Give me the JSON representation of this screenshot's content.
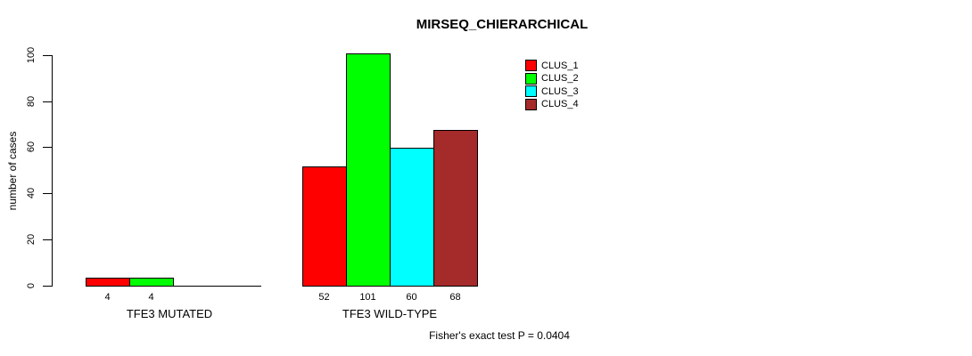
{
  "chart_data": {
    "type": "bar",
    "title": "MIRSEQ_CHIERARCHICAL",
    "ylabel": "number of cases",
    "xlabel": "",
    "ylim": [
      0,
      100
    ],
    "yticks": [
      0,
      20,
      40,
      60,
      80,
      100
    ],
    "grid": false,
    "legend_position": "top-right",
    "categories": [
      "TFE3 MUTATED",
      "TFE3 WILD-TYPE"
    ],
    "series": [
      {
        "name": "CLUS_1",
        "color": "#ff0000",
        "values": [
          4,
          52
        ]
      },
      {
        "name": "CLUS_2",
        "color": "#00ff00",
        "values": [
          4,
          101
        ]
      },
      {
        "name": "CLUS_3",
        "color": "#00ffff",
        "values": [
          0,
          60
        ]
      },
      {
        "name": "CLUS_4",
        "color": "#a52a2a",
        "values": [
          0,
          68
        ]
      }
    ],
    "bar_value_labels": [
      [
        "4",
        "4",
        "",
        ""
      ],
      [
        "52",
        "101",
        "60",
        "68"
      ]
    ],
    "annotation": "Fisher's exact test P = 0.0404"
  },
  "colors": {
    "background": "#ffffff",
    "axis": "#000000",
    "text": "#000000"
  }
}
